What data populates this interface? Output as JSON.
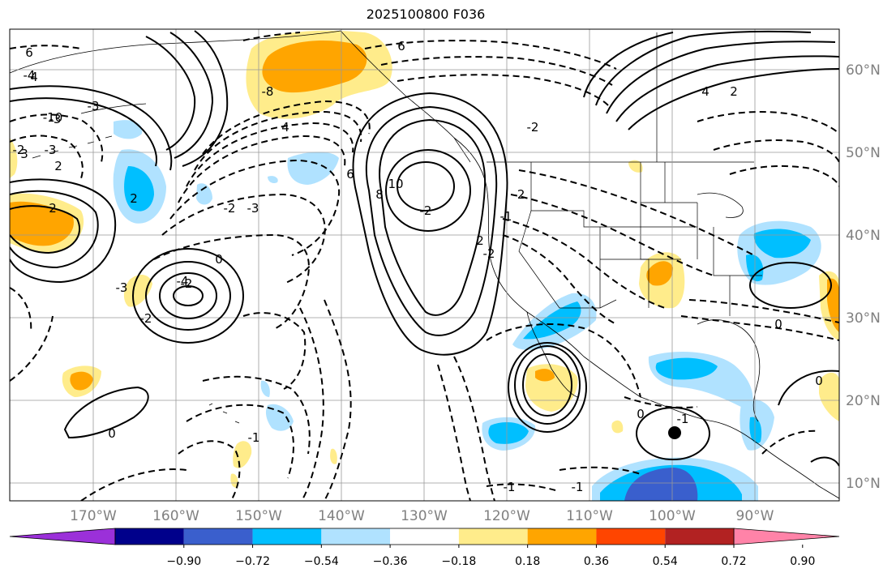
{
  "title": "2025100800 F036",
  "map": {
    "lon_labels": [
      "170°W",
      "160°W",
      "150°W",
      "140°W",
      "130°W",
      "120°W",
      "110°W",
      "100°W",
      "90°W"
    ],
    "lat_labels": [
      "60°N",
      "50°N",
      "40°N",
      "30°N",
      "20°N",
      "10°N"
    ],
    "label_color": "#808080",
    "grid": true,
    "ocean_color": "#ffffff",
    "coastline_color": "#000000"
  },
  "colorbar": {
    "ticks": [
      "−0.90",
      "−0.72",
      "−0.54",
      "−0.36",
      "−0.18",
      "0.18",
      "0.36",
      "0.54",
      "0.72",
      "0.90"
    ],
    "colors": [
      "#9b30d9",
      "#00008b",
      "#3a5fcd",
      "#00bfff",
      "#b0e2ff",
      "#ffffff",
      "#ffec8b",
      "#ffa500",
      "#ff4500",
      "#b22222",
      "#ff83a8"
    ],
    "extend": "both"
  },
  "contour_labels": [
    "6",
    "4",
    "2",
    "-3",
    "-10",
    "-3",
    "3",
    "2",
    "-3",
    "-2",
    "-4",
    "2",
    "-1",
    "6",
    "-8",
    "4",
    "6",
    "8",
    "10",
    "-2",
    "-2",
    "-3",
    "-2",
    "-1",
    "-2",
    "2",
    "0",
    "0",
    "-1",
    "0",
    "0",
    "-1",
    "-1",
    "-2",
    "-4",
    "-3",
    "-2",
    "-2",
    "0",
    "4",
    "2"
  ]
}
